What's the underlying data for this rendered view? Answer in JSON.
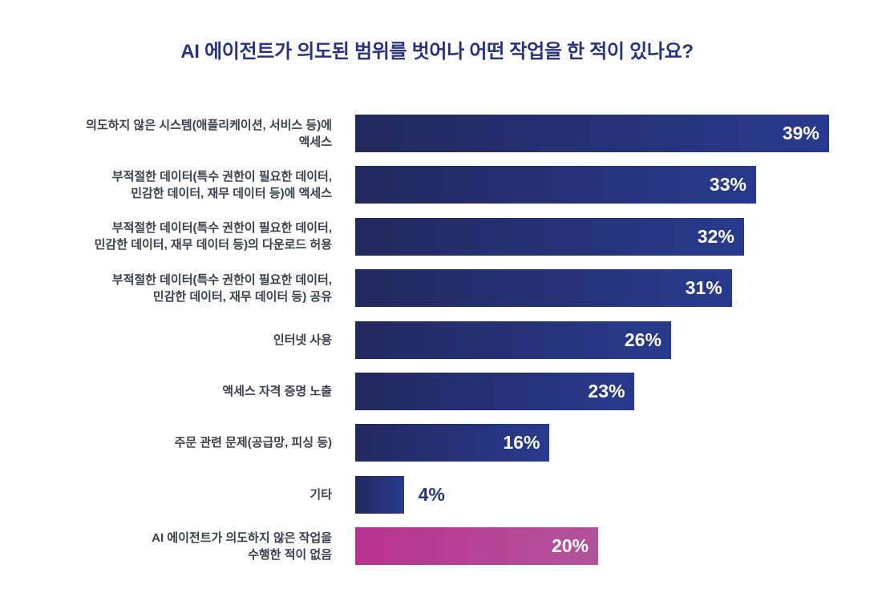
{
  "chart_data": {
    "type": "bar",
    "orientation": "horizontal",
    "title": "AI 에이전트가 의도된 범위를 벗어나 어떤 작업을 한 적이 있나요?",
    "categories": [
      "의도하지 않은 시스템(애플리케이션, 서비스 등)에\n액세스",
      "부적절한 데이터(특수 권한이 필요한 데이터,\n민감한 데이터, 재무 데이터 등)에 액세스",
      "부적절한 데이터(특수 권한이 필요한 데이터,\n민감한 데이터, 재무 데이터 등)의 다운로드 허용",
      "부적절한 데이터(특수 권한이 필요한 데이터,\n민감한 데이터, 재무 데이터 등) 공유",
      "인터넷 사용",
      "액세스 자격 증명 노출",
      "주문 관련 문제(공급망, 피싱 등)",
      "기타",
      "AI 에이전트가 의도하지 않은 작업을\n수행한 적이 없음"
    ],
    "values": [
      39,
      33,
      32,
      31,
      26,
      23,
      16,
      4,
      20
    ],
    "value_labels": [
      "39%",
      "33%",
      "32%",
      "31%",
      "26%",
      "23%",
      "16%",
      "4%",
      "20%"
    ],
    "unit": "%",
    "grid": false,
    "colors": {
      "main": "#262f78",
      "highlight": "#b5409a",
      "title": "#27337f",
      "label": "#3b4050"
    }
  }
}
